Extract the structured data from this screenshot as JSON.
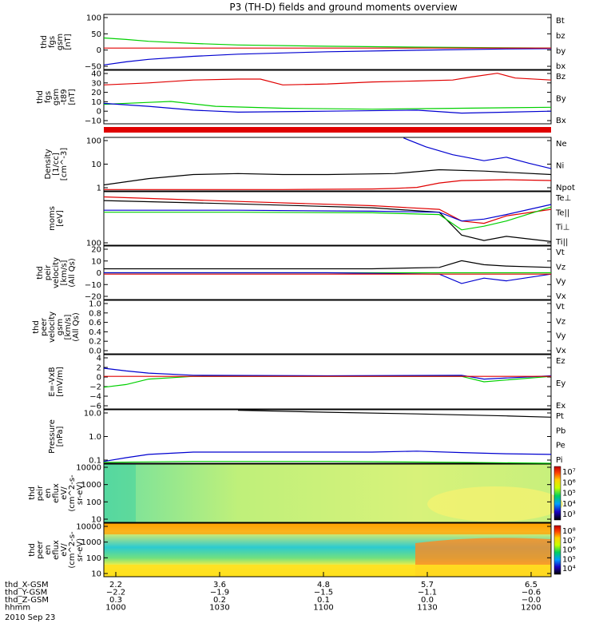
{
  "title": "P3 (TH-D) fields and ground moments overview",
  "date_label": "2010 Sep 23",
  "colors": {
    "black": "#000000",
    "red": "#e00000",
    "green": "#00d000",
    "blue": "#0000d0"
  },
  "chart_data": [
    {
      "type": "line",
      "id": "p1",
      "ylabel_lines": [
        "thd",
        "fgs",
        "gsm",
        "[nT]"
      ],
      "yticks": [
        "100",
        "50",
        "0",
        "−50"
      ],
      "legend": [
        {
          "name": "Bt",
          "color": "black"
        },
        {
          "name": "bz",
          "color": "red"
        },
        {
          "name": "by",
          "color": "green"
        },
        {
          "name": "bx",
          "color": "blue"
        }
      ],
      "ylim": [
        -70,
        110
      ],
      "series": [
        {
          "name": "by",
          "color": "green",
          "x": [
            0,
            0.05,
            0.1,
            0.2,
            0.3,
            0.5,
            0.7,
            0.9,
            1.0
          ],
          "y": [
            33,
            28,
            22,
            15,
            10,
            6,
            3,
            1,
            0
          ]
        },
        {
          "name": "bx",
          "color": "blue",
          "x": [
            0,
            0.05,
            0.1,
            0.2,
            0.3,
            0.5,
            0.7,
            0.9,
            1.0
          ],
          "y": [
            -55,
            -45,
            -37,
            -27,
            -20,
            -12,
            -7,
            -3,
            -2
          ]
        },
        {
          "name": "bz",
          "color": "red",
          "x": [
            0,
            1
          ],
          "y": [
            0,
            0
          ]
        }
      ]
    },
    {
      "type": "line",
      "id": "p2",
      "ylabel_lines": [
        "thd",
        "fgs",
        "gsm",
        "-t89",
        "[nT]"
      ],
      "yticks": [
        "40",
        "30",
        "20",
        "10",
        "0",
        "−10"
      ],
      "legend": [
        {
          "name": "Bz",
          "color": "red"
        },
        {
          "name": "By",
          "color": "green"
        },
        {
          "name": "Bx",
          "color": "blue"
        }
      ],
      "ylim": [
        -15,
        40
      ],
      "series": [
        {
          "name": "Bz",
          "color": "red",
          "x": [
            0,
            0.1,
            0.2,
            0.3,
            0.35,
            0.4,
            0.5,
            0.6,
            0.7,
            0.78,
            0.82,
            0.88,
            0.92,
            1.0
          ],
          "y": [
            25,
            27,
            30,
            31,
            31,
            25,
            26,
            28,
            29,
            30,
            33,
            37,
            32,
            30
          ]
        },
        {
          "name": "By",
          "color": "green",
          "x": [
            0,
            0.1,
            0.15,
            0.25,
            0.4,
            0.6,
            0.8,
            1.0
          ],
          "y": [
            5,
            7,
            8,
            3,
            1,
            0,
            1,
            2
          ]
        },
        {
          "name": "Bx",
          "color": "blue",
          "x": [
            0,
            0.1,
            0.2,
            0.3,
            0.5,
            0.7,
            0.8,
            1.0
          ],
          "y": [
            6,
            3,
            -1,
            -3,
            -2,
            -1,
            -4,
            -2
          ]
        }
      ]
    },
    {
      "type": "line",
      "id": "p3",
      "ylabel_lines": [
        "Density",
        "[1/cc]",
        "[cm^-3]"
      ],
      "yticks": [
        "100",
        "10",
        "1"
      ],
      "log": true,
      "legend": [
        {
          "name": "Ne",
          "color": "red"
        },
        {
          "name": "Ni",
          "color": "black"
        },
        {
          "name": "Npot",
          "color": "blue"
        }
      ],
      "ylim": [
        0.6,
        300
      ],
      "series": [
        {
          "name": "Ni",
          "color": "black",
          "x": [
            0,
            0.1,
            0.2,
            0.3,
            0.4,
            0.5,
            0.65,
            0.75,
            0.85,
            1.0
          ],
          "y": [
            1.2,
            2.5,
            4,
            4.5,
            4,
            4,
            4.5,
            7,
            6,
            4
          ]
        },
        {
          "name": "Ne",
          "color": "red",
          "x": [
            0,
            0.2,
            0.4,
            0.6,
            0.65,
            0.7,
            0.75,
            0.8,
            0.9,
            1.0
          ],
          "y": [
            0.7,
            0.7,
            0.7,
            0.75,
            0.8,
            0.9,
            1.5,
            2,
            2.2,
            2.0
          ]
        },
        {
          "name": "Npot",
          "color": "blue",
          "x": [
            0.67,
            0.72,
            0.78,
            0.85,
            0.9,
            0.95,
            1.0
          ],
          "y": [
            280,
            100,
            40,
            20,
            30,
            15,
            8
          ]
        }
      ]
    },
    {
      "type": "line",
      "id": "p4",
      "ylabel_lines": [
        "moms",
        "[eV]"
      ],
      "yticks": [
        "100"
      ],
      "log": true,
      "legend": [
        {
          "name": "Te⊥",
          "color": "red"
        },
        {
          "name": "Te||",
          "color": "black"
        },
        {
          "name": "Ti⊥",
          "color": "blue"
        },
        {
          "name": "Ti||",
          "color": "green"
        }
      ],
      "ylim": [
        90,
        6000
      ],
      "series": [
        {
          "name": "Te⊥",
          "color": "red",
          "x": [
            0,
            0.3,
            0.6,
            0.75,
            0.8,
            0.85,
            0.9,
            1.0
          ],
          "y": [
            4000,
            2800,
            2000,
            1500,
            600,
            500,
            900,
            1500
          ]
        },
        {
          "name": "Te||",
          "color": "black",
          "x": [
            0,
            0.3,
            0.6,
            0.75,
            0.8,
            0.85,
            0.9,
            1.0
          ],
          "y": [
            3000,
            2300,
            1700,
            1200,
            200,
            130,
            180,
            120
          ]
        },
        {
          "name": "Ti⊥",
          "color": "blue",
          "x": [
            0,
            0.3,
            0.6,
            0.75,
            0.8,
            0.85,
            0.9,
            1.0
          ],
          "y": [
            1400,
            1400,
            1300,
            1200,
            600,
            700,
            1000,
            2200
          ]
        },
        {
          "name": "Ti||",
          "color": "green",
          "x": [
            0,
            0.3,
            0.6,
            0.75,
            0.8,
            0.85,
            0.9,
            1.0
          ],
          "y": [
            1200,
            1200,
            1150,
            1000,
            300,
            400,
            600,
            1800
          ]
        }
      ]
    },
    {
      "type": "line",
      "id": "p5",
      "ylabel_lines": [
        "thd",
        "peir",
        "velocity",
        "[km/s]",
        "(All Qs)"
      ],
      "yticks": [
        "20",
        "10",
        "0",
        "−10",
        "−20"
      ],
      "legend": [
        {
          "name": "Vt",
          "color": "black"
        },
        {
          "name": "Vz",
          "color": "red"
        },
        {
          "name": "Vy",
          "color": "green"
        },
        {
          "name": "Vx",
          "color": "blue"
        }
      ],
      "ylim": [
        -20,
        20
      ],
      "series": [
        {
          "name": "Vt",
          "color": "black",
          "x": [
            0,
            0.2,
            0.4,
            0.6,
            0.75,
            0.8,
            0.85,
            0.9,
            1.0
          ],
          "y": [
            3,
            3,
            3,
            3,
            4,
            9,
            6,
            5,
            4
          ]
        },
        {
          "name": "Vy",
          "color": "green",
          "x": [
            0,
            0.5,
            0.8,
            1.0
          ],
          "y": [
            0,
            0,
            0,
            0
          ]
        },
        {
          "name": "Vx",
          "color": "blue",
          "x": [
            0,
            0.5,
            0.75,
            0.8,
            0.85,
            0.9,
            1.0
          ],
          "y": [
            0,
            0,
            -1,
            -8,
            -4,
            -6,
            -1
          ]
        },
        {
          "name": "Vz",
          "color": "red",
          "x": [
            0,
            0.5,
            1.0
          ],
          "y": [
            -1,
            -1,
            -1
          ]
        }
      ]
    },
    {
      "type": "line",
      "id": "p6",
      "ylabel_lines": [
        "thd",
        "peer",
        "velocity",
        "gsm",
        "[km/s]",
        "(All Qs)"
      ],
      "yticks": [
        "1.0",
        "0.8",
        "0.6",
        "0.4",
        "0.2",
        "0.0"
      ],
      "legend": [
        {
          "name": "Vt",
          "color": "black"
        },
        {
          "name": "Vz",
          "color": "red"
        },
        {
          "name": "Vy",
          "color": "green"
        },
        {
          "name": "Vx",
          "color": "blue"
        }
      ],
      "ylim": [
        0,
        1
      ],
      "series": []
    },
    {
      "type": "line",
      "id": "p7",
      "ylabel_lines": [
        "E=-VxB",
        "[mV/m]"
      ],
      "yticks": [
        "4",
        "2",
        "0",
        "−2",
        "−4",
        "−6"
      ],
      "legend": [
        {
          "name": "Ez",
          "color": "red"
        },
        {
          "name": "Ey",
          "color": "green"
        },
        {
          "name": "Ex",
          "color": "blue"
        }
      ],
      "ylim": [
        -6,
        4
      ],
      "series": [
        {
          "name": "Ey",
          "color": "green",
          "x": [
            0,
            0.05,
            0.1,
            0.2,
            0.5,
            0.8,
            0.85,
            1.0
          ],
          "y": [
            -2,
            -1.5,
            -0.5,
            0,
            0,
            0,
            -1,
            0
          ]
        },
        {
          "name": "Ex",
          "color": "blue",
          "x": [
            0,
            0.05,
            0.1,
            0.2,
            0.5,
            0.8,
            0.85,
            1.0
          ],
          "y": [
            1.5,
            1,
            0.6,
            0.2,
            0.1,
            0.2,
            -0.5,
            0.1
          ]
        },
        {
          "name": "Ez",
          "color": "red",
          "x": [
            0,
            1
          ],
          "y": [
            0,
            0
          ]
        }
      ]
    },
    {
      "type": "line",
      "id": "p8",
      "ylabel_lines": [
        "Pressure",
        "[nPa]"
      ],
      "yticks": [
        "10.0",
        "1.0",
        "0.1"
      ],
      "log": true,
      "legend": [
        {
          "name": "Pt",
          "color": "black"
        },
        {
          "name": "Pb",
          "color": "red"
        },
        {
          "name": "Pe",
          "color": "green"
        },
        {
          "name": "Pi",
          "color": "blue"
        }
      ],
      "ylim": [
        0.04,
        30
      ],
      "series": [
        {
          "name": "Pt",
          "color": "black",
          "x": [
            0.3,
            0.5,
            0.7,
            0.9,
            1.0
          ],
          "y": [
            28,
            22,
            18,
            14,
            12
          ]
        },
        {
          "name": "Pi",
          "color": "blue",
          "x": [
            0,
            0.05,
            0.1,
            0.2,
            0.4,
            0.6,
            0.7,
            0.8,
            0.9,
            1.0
          ],
          "y": [
            0.05,
            0.08,
            0.12,
            0.16,
            0.16,
            0.16,
            0.18,
            0.15,
            0.13,
            0.12
          ]
        },
        {
          "name": "Pe",
          "color": "green",
          "x": [
            0,
            0.2,
            0.5,
            0.8,
            1.0
          ],
          "y": [
            0.045,
            0.05,
            0.05,
            0.045,
            0.04
          ]
        }
      ]
    },
    {
      "type": "heatmap",
      "id": "p9",
      "ylabel_lines": [
        "thd",
        "peir",
        "en",
        "eflux",
        "eV/",
        "(cm^2-s-",
        "sr-eV)"
      ],
      "yticks": [
        "10000",
        "1000",
        "100",
        "10"
      ],
      "cbar_ticks": [
        "10⁷",
        "10⁶",
        "10⁵",
        "10⁴",
        "10³"
      ]
    },
    {
      "type": "heatmap",
      "id": "p10",
      "ylabel_lines": [
        "thd",
        "peer",
        "en",
        "eflux",
        "eV/",
        "(cm^2-s-",
        "sr-eV)"
      ],
      "yticks": [
        "10000",
        "1000",
        "100",
        "10"
      ],
      "cbar_ticks": [
        "10⁸",
        "10⁷",
        "10⁶",
        "10⁵",
        "10⁴"
      ]
    }
  ],
  "ephemeris": {
    "rows": [
      {
        "label": "thd_X-GSM",
        "values": [
          "2.2",
          "3.6",
          "4.8",
          "5.7",
          "6.5"
        ]
      },
      {
        "label": "thd_Y-GSM",
        "values": [
          "−2.2",
          "−1.9",
          "−1.5",
          "−1.1",
          "−0.6"
        ]
      },
      {
        "label": "thd_Z-GSM",
        "values": [
          "0.3",
          "0.2",
          "0.1",
          "0.0",
          "−0.0"
        ]
      },
      {
        "label": "hhmm",
        "values": [
          "1000",
          "1030",
          "1100",
          "1130",
          "1200"
        ]
      }
    ]
  }
}
